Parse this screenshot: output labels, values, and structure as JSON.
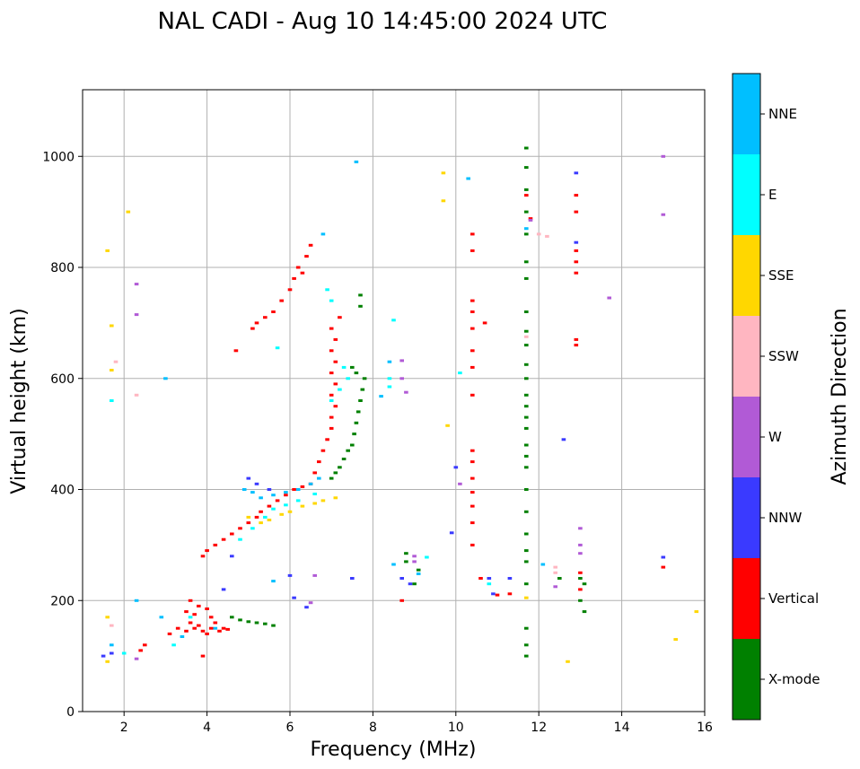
{
  "chart_data": {
    "type": "scatter",
    "title": "NAL CADI - Aug 10 14:45:00 2024 UTC",
    "xlabel": "Frequency (MHz)",
    "ylabel": "Virtual height (km)",
    "xlim": [
      1,
      16
    ],
    "ylim": [
      0,
      1120
    ],
    "xticks": [
      2,
      4,
      6,
      8,
      10,
      12,
      14,
      16
    ],
    "yticks": [
      0,
      200,
      400,
      600,
      800,
      1000
    ],
    "grid": true,
    "colorbar": {
      "label": "Azimuth Direction",
      "categories": [
        {
          "name": "X-mode",
          "color": "#008000"
        },
        {
          "name": "Vertical",
          "color": "#ff0000"
        },
        {
          "name": "NNW",
          "color": "#3a3aff"
        },
        {
          "name": "W",
          "color": "#b15ad6"
        },
        {
          "name": "SSW",
          "color": "#ffb6c1"
        },
        {
          "name": "SSE",
          "color": "#ffd700"
        },
        {
          "name": "E",
          "color": "#00ffff"
        },
        {
          "name": "NNE",
          "color": "#00bfff"
        }
      ]
    },
    "series": [
      {
        "name": "X-mode",
        "points": [
          [
            4.6,
            170
          ],
          [
            4.8,
            165
          ],
          [
            5.0,
            162
          ],
          [
            5.2,
            160
          ],
          [
            5.4,
            158
          ],
          [
            5.6,
            155
          ],
          [
            7.0,
            420
          ],
          [
            7.1,
            430
          ],
          [
            7.2,
            440
          ],
          [
            7.3,
            455
          ],
          [
            7.4,
            470
          ],
          [
            7.5,
            480
          ],
          [
            7.55,
            500
          ],
          [
            7.6,
            520
          ],
          [
            7.65,
            540
          ],
          [
            7.7,
            560
          ],
          [
            7.75,
            580
          ],
          [
            7.8,
            600
          ],
          [
            7.6,
            610
          ],
          [
            7.5,
            620
          ],
          [
            7.7,
            750
          ],
          [
            7.7,
            730
          ],
          [
            8.8,
            285
          ],
          [
            8.8,
            270
          ],
          [
            9.1,
            255
          ],
          [
            9.0,
            230
          ],
          [
            11.7,
            1015
          ],
          [
            11.7,
            980
          ],
          [
            11.7,
            940
          ],
          [
            11.7,
            900
          ],
          [
            11.7,
            860
          ],
          [
            11.7,
            810
          ],
          [
            11.7,
            780
          ],
          [
            11.7,
            720
          ],
          [
            11.7,
            685
          ],
          [
            11.7,
            660
          ],
          [
            11.7,
            625
          ],
          [
            11.7,
            600
          ],
          [
            11.7,
            570
          ],
          [
            11.7,
            550
          ],
          [
            11.7,
            530
          ],
          [
            11.7,
            510
          ],
          [
            11.7,
            480
          ],
          [
            11.7,
            460
          ],
          [
            11.7,
            440
          ],
          [
            11.7,
            400
          ],
          [
            11.7,
            360
          ],
          [
            11.7,
            320
          ],
          [
            11.7,
            290
          ],
          [
            11.7,
            270
          ],
          [
            11.7,
            230
          ],
          [
            11.7,
            150
          ],
          [
            11.7,
            120
          ],
          [
            11.7,
            100
          ],
          [
            12.5,
            240
          ],
          [
            13.0,
            240
          ],
          [
            13.1,
            230
          ],
          [
            13.0,
            200
          ],
          [
            13.1,
            180
          ]
        ]
      },
      {
        "name": "Vertical",
        "points": [
          [
            2.4,
            110
          ],
          [
            2.5,
            120
          ],
          [
            3.1,
            140
          ],
          [
            3.3,
            150
          ],
          [
            3.5,
            145
          ],
          [
            3.6,
            160
          ],
          [
            3.7,
            150
          ],
          [
            3.8,
            155
          ],
          [
            3.9,
            145
          ],
          [
            4.0,
            140
          ],
          [
            4.1,
            150
          ],
          [
            4.2,
            160
          ],
          [
            4.3,
            145
          ],
          [
            4.4,
            150
          ],
          [
            4.5,
            148
          ],
          [
            3.6,
            200
          ],
          [
            3.8,
            190
          ],
          [
            4.0,
            185
          ],
          [
            4.1,
            170
          ],
          [
            3.5,
            180
          ],
          [
            3.7,
            175
          ],
          [
            3.9,
            280
          ],
          [
            4.0,
            290
          ],
          [
            4.2,
            300
          ],
          [
            4.4,
            310
          ],
          [
            4.6,
            320
          ],
          [
            4.8,
            330
          ],
          [
            5.0,
            340
          ],
          [
            5.2,
            350
          ],
          [
            5.3,
            360
          ],
          [
            5.5,
            370
          ],
          [
            5.7,
            380
          ],
          [
            5.9,
            390
          ],
          [
            6.1,
            400
          ],
          [
            6.3,
            405
          ],
          [
            6.5,
            410
          ],
          [
            6.6,
            430
          ],
          [
            6.7,
            450
          ],
          [
            6.8,
            470
          ],
          [
            6.9,
            490
          ],
          [
            7.0,
            510
          ],
          [
            7.0,
            530
          ],
          [
            7.1,
            550
          ],
          [
            7.0,
            570
          ],
          [
            7.1,
            590
          ],
          [
            7.0,
            610
          ],
          [
            7.1,
            630
          ],
          [
            7.0,
            650
          ],
          [
            7.1,
            670
          ],
          [
            7.0,
            690
          ],
          [
            7.2,
            710
          ],
          [
            6.2,
            800
          ],
          [
            6.3,
            790
          ],
          [
            6.4,
            820
          ],
          [
            6.5,
            840
          ],
          [
            6.1,
            780
          ],
          [
            6.0,
            760
          ],
          [
            5.8,
            740
          ],
          [
            5.6,
            720
          ],
          [
            5.4,
            710
          ],
          [
            5.2,
            700
          ],
          [
            5.1,
            690
          ],
          [
            4.7,
            650
          ],
          [
            8.7,
            200
          ],
          [
            10.4,
            860
          ],
          [
            10.4,
            830
          ],
          [
            10.4,
            740
          ],
          [
            10.4,
            720
          ],
          [
            10.4,
            690
          ],
          [
            10.4,
            650
          ],
          [
            10.4,
            620
          ],
          [
            10.4,
            570
          ],
          [
            10.4,
            470
          ],
          [
            10.4,
            450
          ],
          [
            10.4,
            420
          ],
          [
            10.4,
            395
          ],
          [
            10.4,
            370
          ],
          [
            10.4,
            340
          ],
          [
            10.4,
            300
          ],
          [
            10.6,
            240
          ],
          [
            10.7,
            700
          ],
          [
            11.0,
            210
          ],
          [
            11.3,
            212
          ],
          [
            11.7,
            930
          ],
          [
            11.8,
            888
          ],
          [
            12.9,
            930
          ],
          [
            12.9,
            900
          ],
          [
            12.9,
            830
          ],
          [
            12.9,
            810
          ],
          [
            12.9,
            790
          ],
          [
            12.9,
            670
          ],
          [
            12.9,
            660
          ],
          [
            13.0,
            250
          ],
          [
            13.0,
            220
          ],
          [
            15.0,
            260
          ],
          [
            3.9,
            100
          ]
        ]
      },
      {
        "name": "NNW",
        "points": [
          [
            1.5,
            100
          ],
          [
            1.7,
            105
          ],
          [
            4.4,
            220
          ],
          [
            4.6,
            280
          ],
          [
            5.0,
            420
          ],
          [
            5.2,
            410
          ],
          [
            5.5,
            400
          ],
          [
            6.0,
            245
          ],
          [
            6.1,
            205
          ],
          [
            6.4,
            188
          ],
          [
            7.5,
            240
          ],
          [
            8.7,
            240
          ],
          [
            8.9,
            230
          ],
          [
            9.9,
            322
          ],
          [
            10.0,
            440
          ],
          [
            10.8,
            240
          ],
          [
            10.9,
            212
          ],
          [
            11.3,
            240
          ],
          [
            12.6,
            490
          ],
          [
            12.9,
            970
          ],
          [
            12.9,
            845
          ],
          [
            15.0,
            278
          ]
        ]
      },
      {
        "name": "W",
        "points": [
          [
            2.3,
            95
          ],
          [
            2.3,
            770
          ],
          [
            2.3,
            715
          ],
          [
            8.7,
            600
          ],
          [
            8.7,
            632
          ],
          [
            8.8,
            575
          ],
          [
            9.0,
            280
          ],
          [
            9.0,
            270
          ],
          [
            10.1,
            410
          ],
          [
            11.8,
            885
          ],
          [
            13.0,
            330
          ],
          [
            13.0,
            300
          ],
          [
            13.0,
            285
          ],
          [
            13.7,
            745
          ],
          [
            15.0,
            1000
          ],
          [
            15.0,
            895
          ],
          [
            12.4,
            225
          ],
          [
            6.6,
            245
          ],
          [
            6.5,
            196
          ]
        ]
      },
      {
        "name": "SSW",
        "points": [
          [
            1.7,
            155
          ],
          [
            1.8,
            630
          ],
          [
            12.4,
            260
          ],
          [
            12.4,
            250
          ],
          [
            12.2,
            856
          ],
          [
            11.7,
            675
          ],
          [
            12.0,
            860
          ],
          [
            2.3,
            570
          ]
        ]
      },
      {
        "name": "SSE",
        "points": [
          [
            1.6,
            90
          ],
          [
            1.6,
            170
          ],
          [
            1.7,
            695
          ],
          [
            1.7,
            615
          ],
          [
            1.6,
            830
          ],
          [
            2.1,
            900
          ],
          [
            5.0,
            350
          ],
          [
            5.3,
            340
          ],
          [
            5.5,
            345
          ],
          [
            5.8,
            355
          ],
          [
            6.0,
            360
          ],
          [
            6.3,
            370
          ],
          [
            6.6,
            375
          ],
          [
            6.8,
            380
          ],
          [
            7.1,
            385
          ],
          [
            9.7,
            970
          ],
          [
            9.7,
            920
          ],
          [
            9.8,
            515
          ],
          [
            12.7,
            90
          ],
          [
            15.3,
            130
          ],
          [
            15.8,
            180
          ],
          [
            11.7,
            205
          ]
        ]
      },
      {
        "name": "E",
        "points": [
          [
            2.0,
            105
          ],
          [
            3.2,
            120
          ],
          [
            3.6,
            170
          ],
          [
            4.8,
            310
          ],
          [
            5.1,
            330
          ],
          [
            5.4,
            350
          ],
          [
            5.6,
            365
          ],
          [
            5.9,
            372
          ],
          [
            6.2,
            380
          ],
          [
            6.6,
            392
          ],
          [
            7.0,
            560
          ],
          [
            7.2,
            580
          ],
          [
            7.4,
            600
          ],
          [
            7.0,
            740
          ],
          [
            6.9,
            760
          ],
          [
            7.3,
            620
          ],
          [
            8.4,
            600
          ],
          [
            8.4,
            585
          ],
          [
            8.5,
            705
          ],
          [
            9.3,
            278
          ],
          [
            10.1,
            610
          ],
          [
            10.8,
            230
          ],
          [
            1.7,
            560
          ],
          [
            5.7,
            655
          ]
        ]
      },
      {
        "name": "NNE",
        "points": [
          [
            1.7,
            120
          ],
          [
            2.3,
            200
          ],
          [
            2.9,
            170
          ],
          [
            3.4,
            135
          ],
          [
            4.2,
            150
          ],
          [
            4.9,
            400
          ],
          [
            5.1,
            395
          ],
          [
            5.3,
            385
          ],
          [
            5.6,
            390
          ],
          [
            5.9,
            395
          ],
          [
            6.2,
            400
          ],
          [
            6.5,
            410
          ],
          [
            6.7,
            420
          ],
          [
            6.8,
            860
          ],
          [
            7.6,
            990
          ],
          [
            8.4,
            630
          ],
          [
            8.5,
            265
          ],
          [
            9.1,
            248
          ],
          [
            10.3,
            960
          ],
          [
            11.7,
            870
          ],
          [
            12.1,
            265
          ],
          [
            3.0,
            600
          ],
          [
            5.6,
            235
          ],
          [
            8.2,
            568
          ]
        ]
      }
    ]
  }
}
